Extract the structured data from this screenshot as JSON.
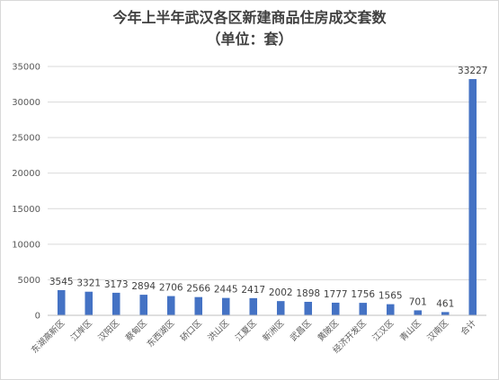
{
  "chart_data": {
    "type": "bar",
    "title": "今年上半年武汉各区新建商品住房成交套数",
    "subtitle": "（单位：套）",
    "categories": [
      "东湖高新区",
      "江岸区",
      "汉阳区",
      "蔡甸区",
      "东西湖区",
      "硚口区",
      "洪山区",
      "江夏区",
      "新洲区",
      "武昌区",
      "黄陂区",
      "经济开发区",
      "江汉区",
      "青山区",
      "汉南区",
      "合计"
    ],
    "values": [
      3545,
      3321,
      3173,
      2894,
      2706,
      2566,
      2445,
      2417,
      2002,
      1898,
      1777,
      1756,
      1565,
      701,
      461,
      33227
    ],
    "data_labels": [
      "3545",
      "3321",
      "3173",
      "2894",
      "2706",
      "2566",
      "2445",
      "2417",
      "2002",
      "1898",
      "1777",
      "1756",
      "1565",
      "701",
      "461",
      "33227"
    ],
    "y_ticks": [
      "0",
      "5000",
      "10000",
      "15000",
      "20000",
      "25000",
      "30000",
      "35000"
    ],
    "ylim": [
      0,
      35000
    ],
    "bar_color": "#4472c4",
    "grid": true,
    "legend": "none",
    "xlabel": "",
    "ylabel": ""
  }
}
